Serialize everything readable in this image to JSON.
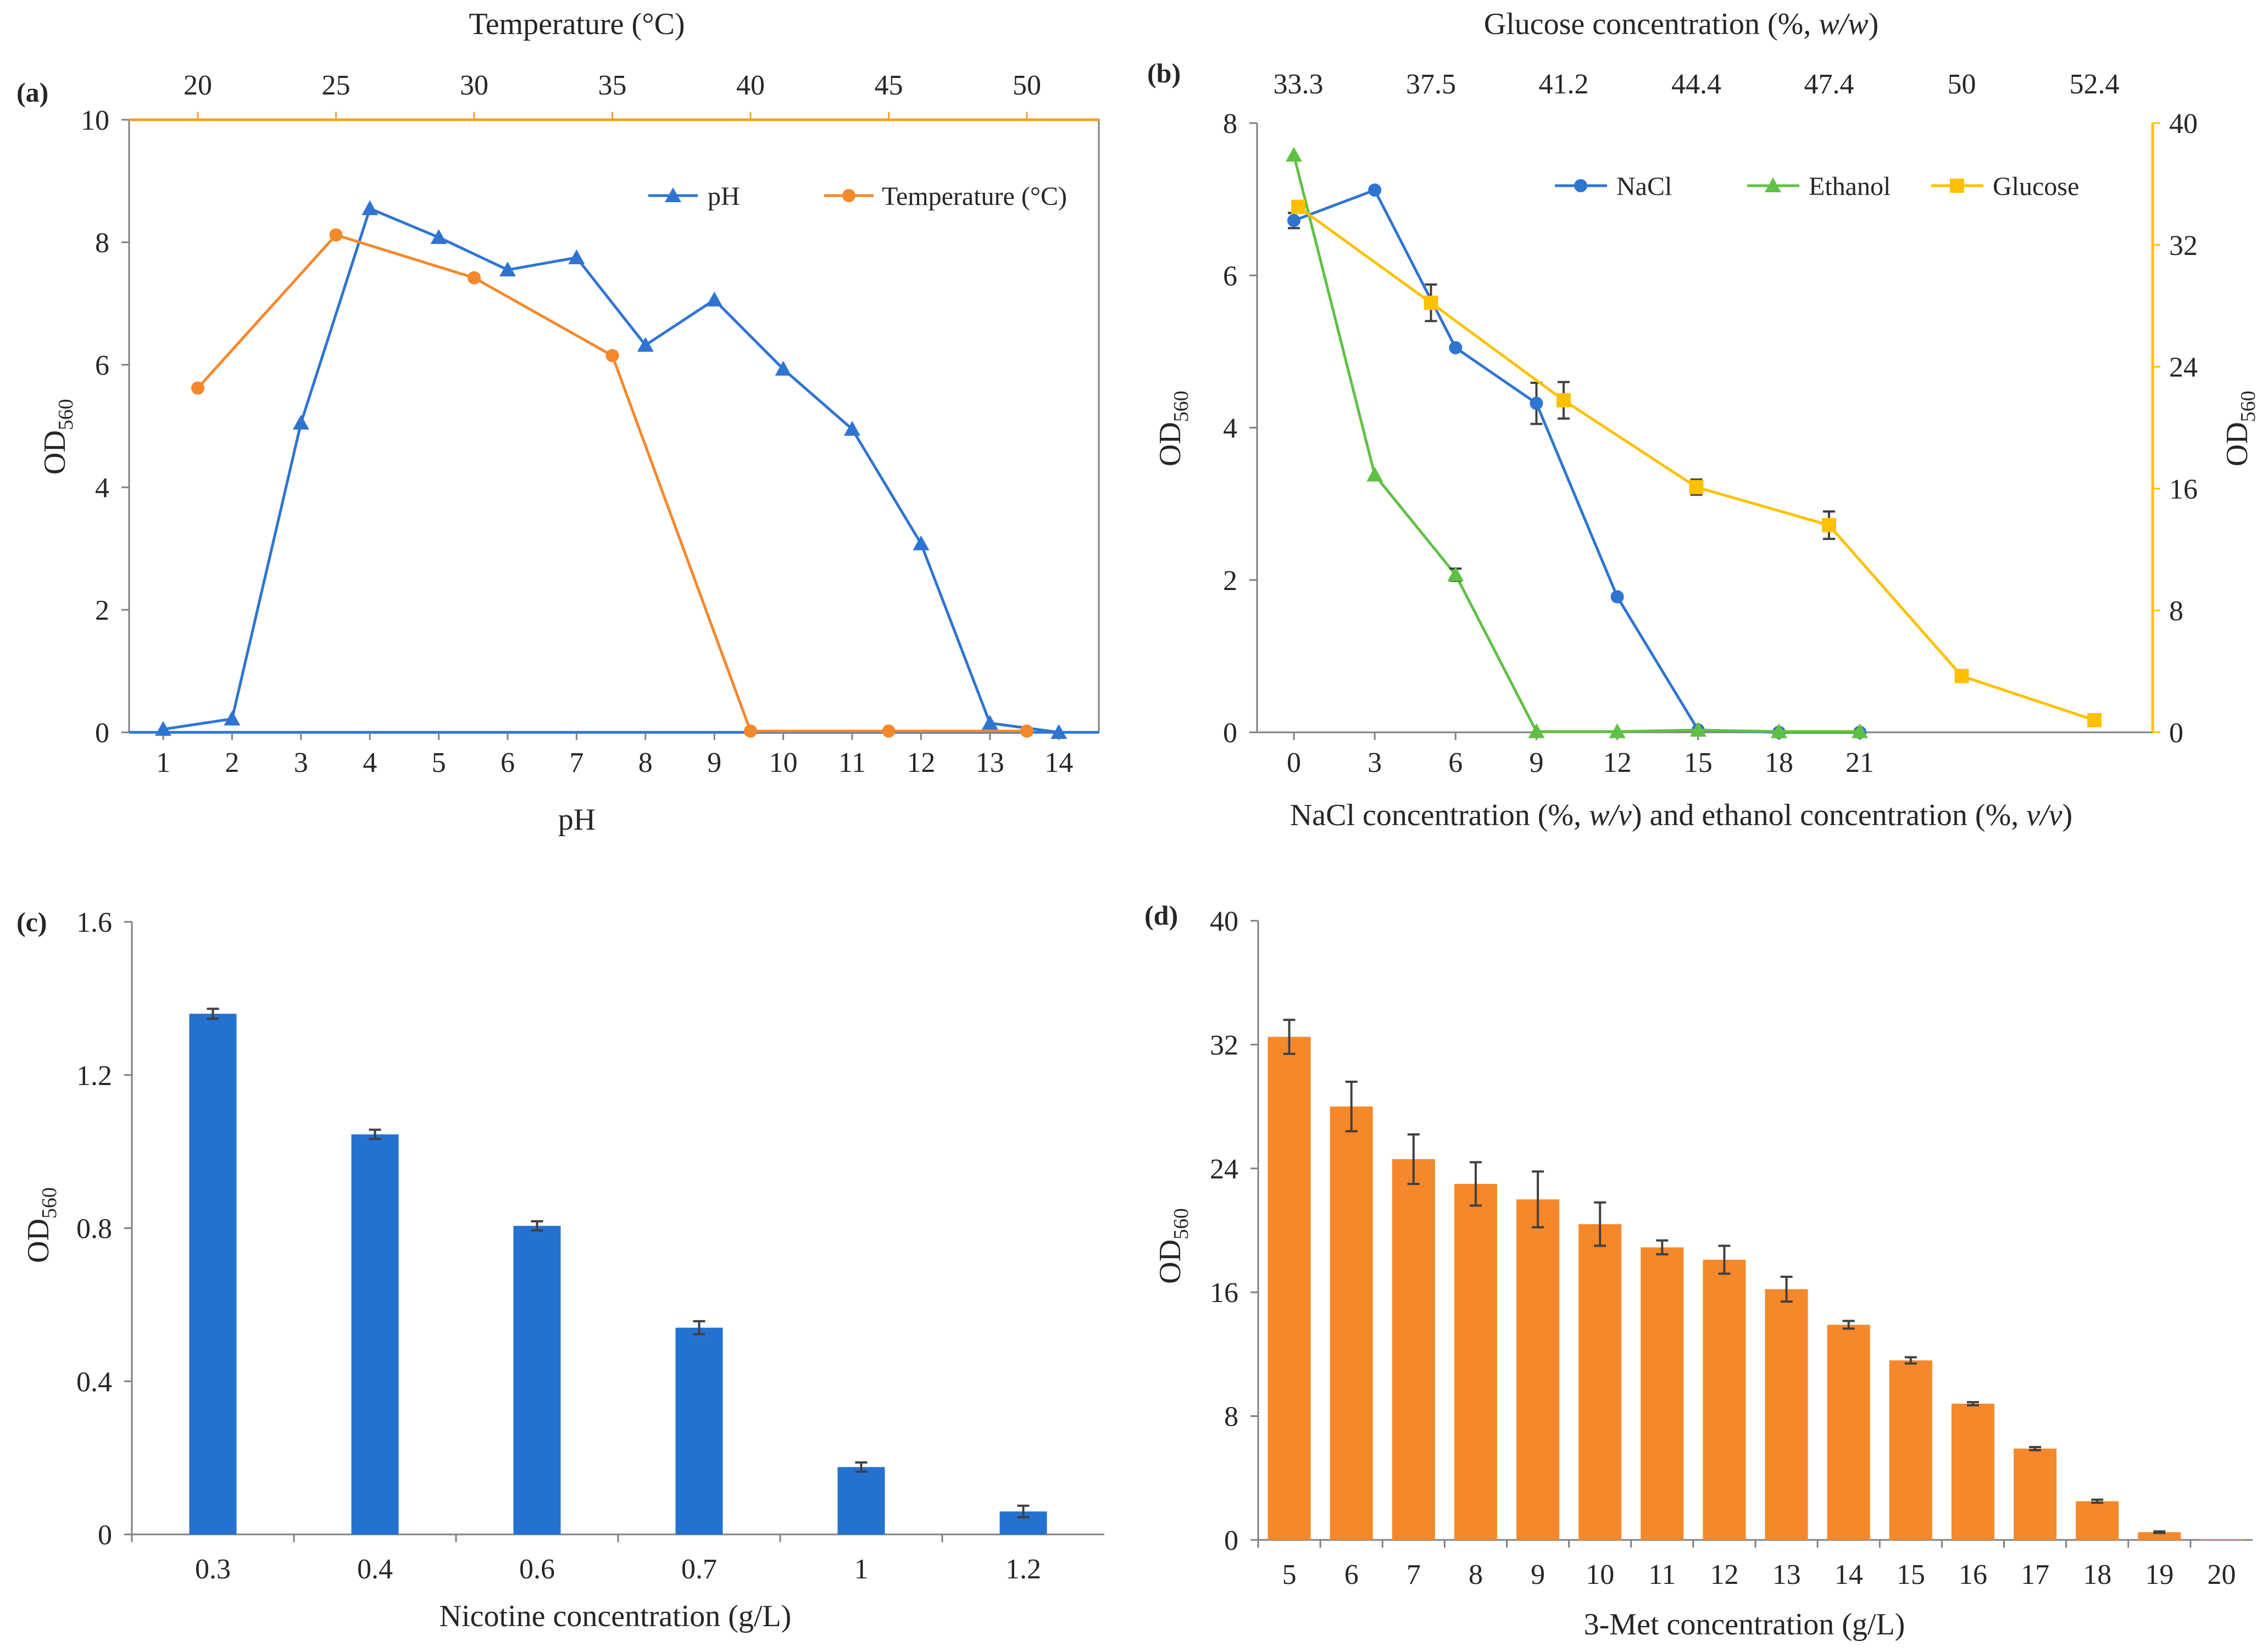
{
  "colors": {
    "blue": "#2e75d1",
    "bar_blue": "#2372d0",
    "orange": "#f5882a",
    "green": "#5fc144",
    "yellow": "#ffc000",
    "top_orange_axis": "#f5a030"
  },
  "chart_data": [
    {
      "panel": "(a)",
      "type": "line",
      "top_axis_title": "Temperature (°C)",
      "top_ticks": [
        "20",
        "25",
        "30",
        "35",
        "40",
        "45",
        "50"
      ],
      "xlabel": "pH",
      "ylabel_main": "OD",
      "ylabel_sub": "560",
      "x_ticks": [
        "1",
        "2",
        "3",
        "4",
        "5",
        "6",
        "7",
        "8",
        "9",
        "10",
        "11",
        "12",
        "13",
        "14"
      ],
      "y_ticks": [
        "0",
        "2",
        "4",
        "6",
        "8",
        "10"
      ],
      "ylim": [
        0,
        10
      ],
      "series": [
        {
          "name": "pH",
          "marker": "triangle",
          "color": "#2e75d1",
          "x": [
            1,
            2,
            3,
            4,
            5,
            6,
            7,
            8,
            9,
            10,
            11,
            12,
            13,
            14
          ],
          "values": [
            0.05,
            0.22,
            5.05,
            8.55,
            8.08,
            7.55,
            7.75,
            6.32,
            7.06,
            5.93,
            4.95,
            3.08,
            0.15,
            0.0
          ]
        },
        {
          "name": "Temperature (°C)",
          "marker": "circle",
          "color": "#f5882a",
          "x": [
            20,
            25,
            30,
            35,
            40,
            45,
            50
          ],
          "values": [
            5.62,
            8.12,
            7.42,
            6.15,
            0.02,
            0.02,
            0.02
          ]
        }
      ],
      "legend": [
        "pH",
        "Temperature (°C)"
      ]
    },
    {
      "panel": "(b)",
      "type": "line",
      "top_axis_title_pre": "Glucose concentration (%, ",
      "top_axis_title_ital": "w/w",
      "top_axis_title_post": ")",
      "top_ticks": [
        "33.3",
        "37.5",
        "41.2",
        "44.4",
        "47.4",
        "50",
        "52.4"
      ],
      "xlabel_a": "NaCl concentration (%, ",
      "xlabel_b": "w/v",
      "xlabel_c": ") and ethanol concentration (%, ",
      "xlabel_d": "v/v",
      "xlabel_e": ")",
      "ylabel_main": "OD",
      "ylabel_sub": "560",
      "x_ticks": [
        "0",
        "3",
        "6",
        "9",
        "12",
        "15",
        "18",
        "21"
      ],
      "y_ticks": [
        "0",
        "2",
        "4",
        "6",
        "8"
      ],
      "y2_ticks": [
        "0",
        "8",
        "16",
        "24",
        "32",
        "40"
      ],
      "ylim": [
        0,
        8
      ],
      "y2lim": [
        0,
        40
      ],
      "series": [
        {
          "name": "NaCl",
          "marker": "circle",
          "color": "#2e75d1",
          "x": [
            0,
            3,
            6,
            9,
            12,
            15,
            18,
            21
          ],
          "values": [
            6.72,
            7.12,
            5.05,
            4.32,
            1.78,
            0.03,
            0.0,
            0.0
          ],
          "errors": [
            0.1,
            0.0,
            0.0,
            0.27,
            0.0,
            0.0,
            0.0,
            0.0
          ]
        },
        {
          "name": "Ethanol",
          "marker": "triangle",
          "color": "#5fc144",
          "x": [
            0,
            3,
            6,
            9,
            12,
            15,
            18,
            21
          ],
          "values": [
            7.58,
            3.38,
            2.07,
            0.01,
            0.01,
            0.03,
            0.01,
            0.01
          ],
          "errors": [
            0.0,
            0.0,
            0.08,
            0.0,
            0.0,
            0.0,
            0.0,
            0.0
          ]
        },
        {
          "name": "Glucose",
          "marker": "square",
          "color": "#ffc000",
          "axis": "right",
          "x": [
            33.3,
            37.5,
            41.2,
            44.4,
            47.4,
            50,
            52.4
          ],
          "values": [
            34.5,
            28.2,
            21.8,
            16.1,
            13.6,
            3.7,
            0.8
          ],
          "errors": [
            0.0,
            1.2,
            1.2,
            0.5,
            0.9,
            0.0,
            0.0
          ]
        }
      ],
      "legend": [
        "NaCl",
        "Ethanol",
        "Glucose"
      ]
    },
    {
      "panel": "(c)",
      "type": "bar",
      "xlabel": "Nicotine concentration (g/L)",
      "ylabel_main": "OD",
      "ylabel_sub": "560",
      "categories": [
        "0.3",
        "0.4",
        "0.6",
        "0.7",
        "1",
        "1.2"
      ],
      "values": [
        1.36,
        1.045,
        0.806,
        0.54,
        0.176,
        0.06
      ],
      "errors": [
        0.013,
        0.012,
        0.012,
        0.017,
        0.012,
        0.015
      ],
      "y_ticks": [
        "0",
        "0.4",
        "0.8",
        "1.2",
        "1.6"
      ],
      "ylim": [
        0,
        1.6
      ]
    },
    {
      "panel": "(d)",
      "type": "bar",
      "xlabel": "3-Met concentration (g/L)",
      "ylabel_main": "OD",
      "ylabel_sub": "560",
      "categories": [
        "5",
        "6",
        "7",
        "8",
        "9",
        "10",
        "11",
        "12",
        "13",
        "14",
        "15",
        "16",
        "17",
        "18",
        "19",
        "20"
      ],
      "values": [
        32.5,
        28.0,
        24.6,
        23.0,
        22.0,
        20.4,
        18.9,
        18.1,
        16.2,
        13.9,
        11.6,
        8.8,
        5.9,
        2.5,
        0.5,
        0.05
      ],
      "errors": [
        1.1,
        1.6,
        1.6,
        1.4,
        1.8,
        1.4,
        0.45,
        0.9,
        0.8,
        0.25,
        0.2,
        0.1,
        0.1,
        0.1,
        0.05,
        0.0
      ],
      "y_ticks": [
        "0",
        "8",
        "16",
        "24",
        "32",
        "40"
      ],
      "ylim": [
        0,
        40
      ]
    }
  ]
}
